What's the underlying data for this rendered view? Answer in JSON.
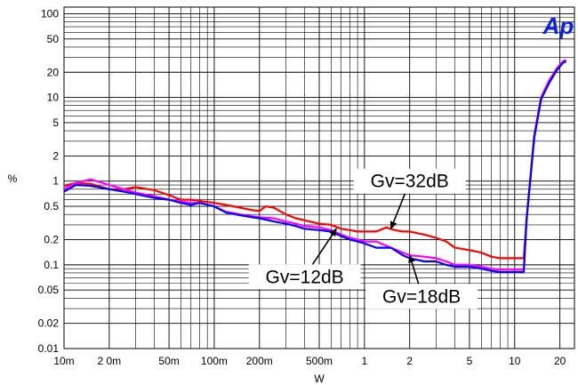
{
  "chart_data": {
    "type": "line",
    "title": "",
    "xlabel": "W",
    "ylabel": "%",
    "x_scale": "log",
    "y_scale": "log",
    "xlim": [
      0.01,
      25
    ],
    "ylim": [
      0.01,
      120
    ],
    "grid": true,
    "x_ticks": [
      {
        "v": 0.01,
        "label": "10m"
      },
      {
        "v": 0.02,
        "label": "2 0m"
      },
      {
        "v": 0.05,
        "label": "50m"
      },
      {
        "v": 0.1,
        "label": "100m"
      },
      {
        "v": 0.2,
        "label": "200m"
      },
      {
        "v": 0.5,
        "label": "500m"
      },
      {
        "v": 1,
        "label": "1"
      },
      {
        "v": 2,
        "label": "2"
      },
      {
        "v": 5,
        "label": "5"
      },
      {
        "v": 10,
        "label": "10"
      },
      {
        "v": 20,
        "label": "20"
      }
    ],
    "y_ticks": [
      {
        "v": 0.01,
        "label": "0.01"
      },
      {
        "v": 0.02,
        "label": "0.02"
      },
      {
        "v": 0.05,
        "label": "0.05"
      },
      {
        "v": 0.1,
        "label": "0.1"
      },
      {
        "v": 0.2,
        "label": "0.2"
      },
      {
        "v": 0.5,
        "label": "0.5"
      },
      {
        "v": 1,
        "label": "1"
      },
      {
        "v": 2,
        "label": "2"
      },
      {
        "v": 5,
        "label": "5"
      },
      {
        "v": 10,
        "label": "10"
      },
      {
        "v": 20,
        "label": "20"
      },
      {
        "v": 50,
        "label": "50"
      },
      {
        "v": 100,
        "label": "100"
      }
    ],
    "series": [
      {
        "name": "Gv=32dB",
        "color": "#ff0000",
        "x": [
          0.01,
          0.012,
          0.015,
          0.02,
          0.025,
          0.03,
          0.04,
          0.05,
          0.06,
          0.07,
          0.08,
          0.1,
          0.12,
          0.15,
          0.18,
          0.2,
          0.22,
          0.25,
          0.3,
          0.35,
          0.4,
          0.5,
          0.6,
          0.7,
          0.8,
          0.9,
          1.0,
          1.2,
          1.4,
          1.6,
          1.8,
          2.0,
          2.5,
          3.0,
          3.5,
          4.0,
          5.0,
          6.0,
          7.0,
          8.0,
          9.0,
          10.0,
          11.5,
          12.0,
          13.5,
          15.0,
          17.0,
          19.0,
          21.0,
          22.0
        ],
        "y": [
          0.88,
          0.95,
          0.93,
          0.8,
          0.8,
          0.85,
          0.78,
          0.68,
          0.6,
          0.6,
          0.58,
          0.55,
          0.52,
          0.48,
          0.45,
          0.44,
          0.5,
          0.48,
          0.4,
          0.36,
          0.34,
          0.31,
          0.3,
          0.27,
          0.26,
          0.25,
          0.25,
          0.25,
          0.28,
          0.26,
          0.25,
          0.25,
          0.23,
          0.21,
          0.19,
          0.16,
          0.15,
          0.14,
          0.125,
          0.12,
          0.12,
          0.12,
          0.12,
          0.35,
          3.5,
          10.0,
          16.0,
          22.0,
          27.0,
          28.0
        ]
      },
      {
        "name": "Gv=18dB",
        "color": "#ff00ff",
        "x": [
          0.01,
          0.012,
          0.015,
          0.02,
          0.025,
          0.03,
          0.04,
          0.05,
          0.06,
          0.07,
          0.08,
          0.1,
          0.12,
          0.15,
          0.18,
          0.2,
          0.25,
          0.3,
          0.35,
          0.4,
          0.5,
          0.6,
          0.7,
          0.8,
          0.9,
          1.0,
          1.2,
          1.5,
          1.8,
          2.0,
          2.5,
          3.0,
          3.5,
          4.0,
          5.0,
          6.0,
          7.0,
          8.0,
          9.0,
          10.0,
          11.5,
          12.0,
          13.5,
          15.0,
          17.0,
          19.0,
          21.0,
          22.0
        ],
        "y": [
          0.8,
          0.95,
          1.05,
          0.9,
          0.8,
          0.73,
          0.66,
          0.6,
          0.57,
          0.55,
          0.55,
          0.5,
          0.43,
          0.4,
          0.38,
          0.37,
          0.36,
          0.33,
          0.31,
          0.29,
          0.28,
          0.26,
          0.23,
          0.21,
          0.2,
          0.19,
          0.19,
          0.16,
          0.14,
          0.13,
          0.125,
          0.12,
          0.11,
          0.1,
          0.1,
          0.095,
          0.09,
          0.088,
          0.088,
          0.088,
          0.088,
          0.35,
          3.5,
          10.0,
          16.0,
          22.0,
          27.0,
          28.0
        ]
      },
      {
        "name": "Gv=12dB",
        "color": "#0000ff",
        "x": [
          0.01,
          0.012,
          0.015,
          0.02,
          0.025,
          0.03,
          0.04,
          0.05,
          0.06,
          0.07,
          0.08,
          0.1,
          0.12,
          0.15,
          0.18,
          0.2,
          0.25,
          0.3,
          0.35,
          0.4,
          0.5,
          0.6,
          0.7,
          0.8,
          0.9,
          1.0,
          1.2,
          1.5,
          1.8,
          2.0,
          2.5,
          3.0,
          3.5,
          4.0,
          5.0,
          6.0,
          7.0,
          8.0,
          9.0,
          10.0,
          11.5,
          12.0,
          13.5,
          15.0,
          17.0,
          19.0,
          21.0,
          22.0
        ],
        "y": [
          0.75,
          0.9,
          0.88,
          0.8,
          0.75,
          0.7,
          0.63,
          0.6,
          0.55,
          0.52,
          0.55,
          0.5,
          0.42,
          0.39,
          0.37,
          0.36,
          0.33,
          0.31,
          0.29,
          0.27,
          0.26,
          0.25,
          0.22,
          0.2,
          0.19,
          0.18,
          0.16,
          0.16,
          0.13,
          0.12,
          0.11,
          0.11,
          0.1,
          0.095,
          0.095,
          0.09,
          0.085,
          0.082,
          0.082,
          0.082,
          0.082,
          0.35,
          3.3,
          9.5,
          15.0,
          21.0,
          26.0,
          27.0
        ]
      }
    ],
    "annotations": [
      {
        "text": "Gv=32dB",
        "target_x": 1.5,
        "target_y": 0.27,
        "label_x": 2.0,
        "label_y": 1.0
      },
      {
        "text": "Gv=12dB",
        "target_x": 0.65,
        "target_y": 0.27,
        "label_x": 0.4,
        "label_y": 0.072
      },
      {
        "text": "Gv=18dB",
        "target_x": 2.0,
        "target_y": 0.13,
        "label_x": 2.4,
        "label_y": 0.042
      }
    ]
  },
  "logo": {
    "text": "Ap",
    "color": "#0a22e6"
  }
}
